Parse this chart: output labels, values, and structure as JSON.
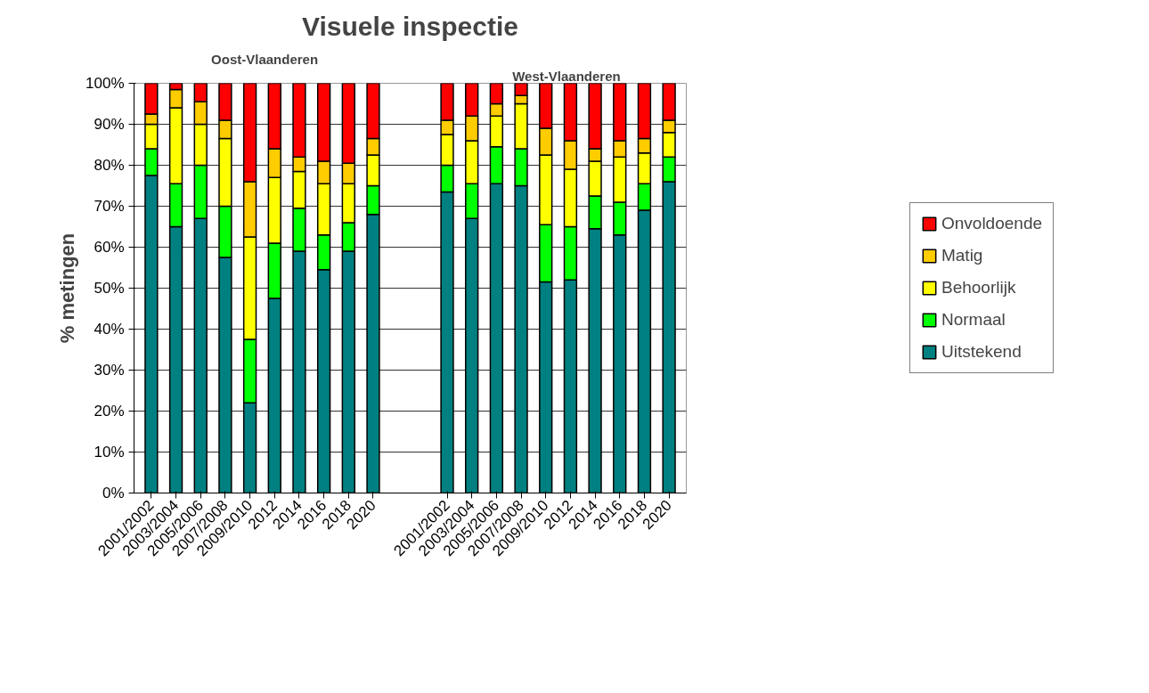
{
  "chart_data": {
    "type": "bar",
    "title": "Visuele inspectie",
    "ylabel": "% metingen",
    "stacked": true,
    "categories": [
      "2001/2002",
      "2003/2004",
      "2005/2006",
      "2007/2008",
      "2009/2010",
      "2012",
      "2014",
      "2016",
      "2018",
      "2020",
      null,
      null,
      "2001/2002",
      "2003/2004",
      "2005/2006",
      "2007/2008",
      "2009/2010",
      "2012",
      "2014",
      "2016",
      "2018",
      "2020"
    ],
    "series": [
      {
        "name": "Uitstekend",
        "color": "#008080",
        "values": [
          77.5,
          65,
          67,
          57.5,
          22,
          47.5,
          59,
          54.5,
          59,
          68,
          null,
          null,
          73.5,
          67,
          75.5,
          75,
          51.5,
          52,
          64.5,
          63,
          69,
          76
        ]
      },
      {
        "name": "Normaal",
        "color": "#00ff00",
        "values": [
          6.5,
          10.5,
          13,
          12.5,
          15.5,
          13.5,
          10.5,
          8.5,
          7,
          7,
          null,
          null,
          6.5,
          8.5,
          9,
          9,
          14,
          13,
          8,
          8,
          6.5,
          6
        ]
      },
      {
        "name": "Behoorlijk",
        "color": "#ffff00",
        "values": [
          6,
          18.5,
          10,
          16.5,
          25,
          16,
          9,
          12.5,
          9.5,
          7.5,
          null,
          null,
          7.5,
          10.5,
          7.5,
          11,
          17,
          14,
          8.5,
          11,
          7.5,
          6
        ]
      },
      {
        "name": "Matig",
        "color": "#ffcc00",
        "values": [
          2.5,
          4.5,
          5.5,
          4.5,
          13.5,
          7,
          3.5,
          5.5,
          5,
          4,
          null,
          null,
          3.5,
          6,
          3,
          2,
          6.5,
          7,
          3,
          4,
          3.5,
          3
        ]
      },
      {
        "name": "Onvoldoende",
        "color": "#ff0000",
        "values": [
          7.5,
          1.5,
          4.5,
          9,
          24,
          16,
          18,
          19,
          19.5,
          13.5,
          null,
          null,
          9,
          8,
          5,
          3,
          11,
          14,
          16,
          14,
          13.5,
          9
        ]
      }
    ],
    "ylim": [
      0,
      100
    ],
    "yticks": [
      {
        "value": 0,
        "label": "0%"
      },
      {
        "value": 10,
        "label": "10%"
      },
      {
        "value": 20,
        "label": "20%"
      },
      {
        "value": 30,
        "label": "30%"
      },
      {
        "value": 40,
        "label": "40%"
      },
      {
        "value": 50,
        "label": "50%"
      },
      {
        "value": 60,
        "label": "60%"
      },
      {
        "value": 70,
        "label": "70%"
      },
      {
        "value": 80,
        "label": "80%"
      },
      {
        "value": 90,
        "label": "90%"
      },
      {
        "value": 100,
        "label": "100%"
      }
    ],
    "grid": "y",
    "legend": "right",
    "annotations": [
      "Oost-Vlaanderen",
      "West-Vlaanderen"
    ]
  }
}
